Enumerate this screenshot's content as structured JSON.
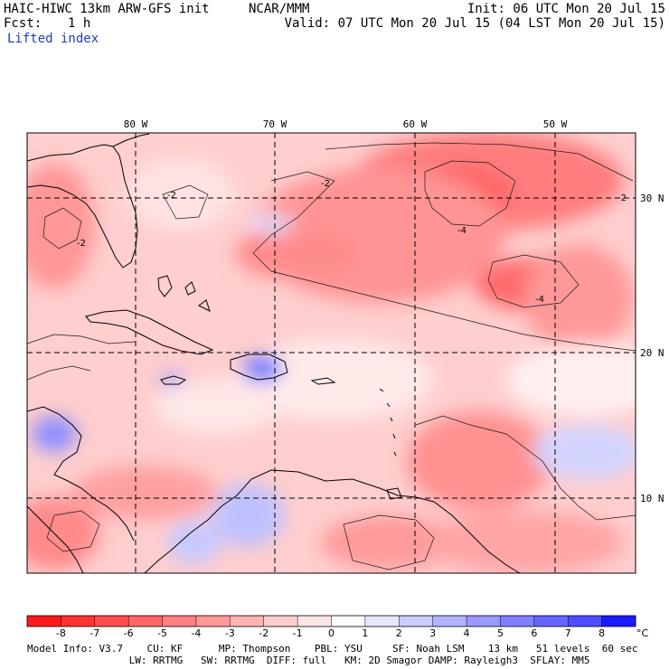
{
  "header": {
    "model_title": "HAIC-HIWC 13km ARW-GFS init",
    "org": "NCAR/MMM",
    "init_time": "Init: 06 UTC Mon 20 Jul 15",
    "fcst_label": "Fcst:",
    "fcst_value": "1 h",
    "valid_time": "Valid: 07 UTC Mon 20 Jul 15 (04 LST Mon 20 Jul 15)",
    "field_name": "Lifted index"
  },
  "map": {
    "lon_labels": [
      "80 W",
      "70 W",
      "60 W",
      "50 W"
    ],
    "lat_labels": [
      "30 N",
      "20 N",
      "10 N"
    ],
    "contour_labels": [
      "-2",
      "-2",
      "-2",
      "-2",
      "-4",
      "-4"
    ]
  },
  "colorbar": {
    "tick_labels": [
      "-8",
      "-7",
      "-6",
      "-5",
      "-4",
      "-3",
      "-2",
      "-1",
      "0",
      "1",
      "2",
      "3",
      "4",
      "5",
      "6",
      "7",
      "8"
    ],
    "unit": "°C",
    "colors": [
      "#ff1a1a",
      "#ff3333",
      "#ff4d4d",
      "#ff6666",
      "#ff8080",
      "#ff9999",
      "#ffb3b3",
      "#ffcccc",
      "#ffe6e6",
      "#ffffff",
      "#e6e6ff",
      "#ccccff",
      "#b3b3ff",
      "#9999ff",
      "#7f7fff",
      "#6666ff",
      "#4d4dff",
      "#1a1aff"
    ]
  },
  "footer": {
    "line1": "Model Info: V3.7    CU: KF      MP: Thompson    PBL: YSU     SF: Noah LSM    13 km   51 levels  60 sec",
    "line2": "                 LW: RRTMG   SW: RRTMG  DIFF: full   KM: 2D Smagor DAMP: Rayleigh3  SFLAY: MM5"
  }
}
